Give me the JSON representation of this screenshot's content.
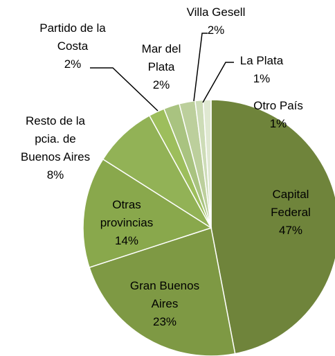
{
  "chart_data": {
    "type": "pie",
    "categories": [
      "Capital Federal",
      "Gran Buenos Aires",
      "Otras provincias",
      "Resto de la pcia. de Buenos Aires",
      "Partido de la Costa",
      "Mar del Plata",
      "Villa Gesell",
      "La Plata",
      "Otro País"
    ],
    "values": [
      47,
      23,
      14,
      8,
      2,
      2,
      2,
      1,
      1
    ],
    "value_labels": [
      "47%",
      "23%",
      "14%",
      "8%",
      "2%",
      "2%",
      "2%",
      "1%",
      "1%"
    ],
    "colors": [
      "#6f843b",
      "#7e9944",
      "#89a84c",
      "#92b256",
      "#9dbe5c",
      "#a9c380",
      "#bccf9c",
      "#cddcb7",
      "#dfe8d1"
    ]
  }
}
